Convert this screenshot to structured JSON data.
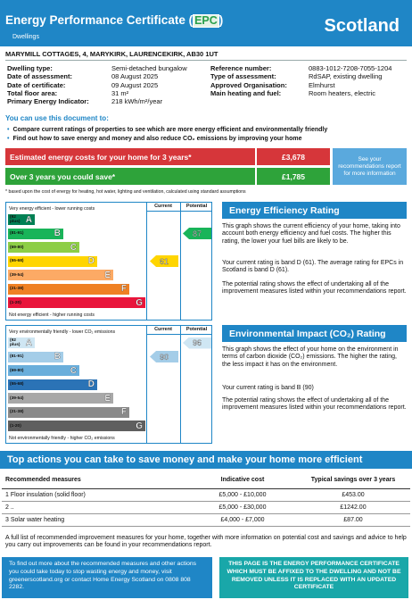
{
  "header": {
    "title_pre": "Energy Performance Certificate (",
    "title_epc": "EPC",
    "title_post": ")",
    "subtitle": "Dwellings",
    "country": "Scotland"
  },
  "address": "MARYMILL COTTAGES, 4, MARYKIRK, LAURENCEKIRK, AB30 1UT",
  "details_left": [
    {
      "label": "Dwelling type:",
      "value": "Semi-detached bungalow"
    },
    {
      "label": "Date of assessment:",
      "value": "08 August 2025"
    },
    {
      "label": "Date of certificate:",
      "value": "09 August 2025"
    },
    {
      "label": "Total floor area:",
      "value": "31 m²"
    },
    {
      "label": "Primary Energy Indicator:",
      "value": "218 kWh/m²/year"
    }
  ],
  "details_right": [
    {
      "label": "Reference number:",
      "value": "0883-1012-7208-7055-1204"
    },
    {
      "label": "Type of assessment:",
      "value": "RdSAP, existing dwelling"
    },
    {
      "label": "Approved Organisation:",
      "value": "Elmhurst"
    },
    {
      "label": "Main heating and fuel:",
      "value": "Room heaters, electric"
    }
  ],
  "use_doc": {
    "heading": "You can use this document to:",
    "bullet1": "Compare current ratings of properties to see which are more energy efficient and environmentally friendly",
    "bullet2": "Find out how to save energy and money and also reduce CO₂ emissions by improving your home"
  },
  "costs": {
    "estimated_label": "Estimated energy costs for your home for 3 years*",
    "estimated_value": "£3,678",
    "save_label": "Over 3 years you could save*",
    "save_value": "£1,785",
    "see_box": "See your recommendations report for more information",
    "footnote": "* based upon the cost of energy for heating, hot water, lighting and ventilation, calculated using standard assumptions"
  },
  "ee_chart": {
    "top_label": "Very energy efficient - lower running costs",
    "bottom_label": "Not energy efficient - higher running costs",
    "col_current": "Current",
    "col_potential": "Potential",
    "bands": [
      {
        "range": "(92 plus)",
        "letter": "A",
        "color": "#008054"
      },
      {
        "range": "(81-91)",
        "letter": "B",
        "color": "#19b459"
      },
      {
        "range": "(69-80)",
        "letter": "C",
        "color": "#8dce46"
      },
      {
        "range": "(55-68)",
        "letter": "D",
        "color": "#ffd500"
      },
      {
        "range": "(39-54)",
        "letter": "E",
        "color": "#fcaa65"
      },
      {
        "range": "(21-38)",
        "letter": "F",
        "color": "#ef8023"
      },
      {
        "range": "(1-20)",
        "letter": "G",
        "color": "#e9153b"
      }
    ],
    "current": 61,
    "current_band": "D",
    "potential": 87,
    "potential_band": "B"
  },
  "ei_chart": {
    "top_label": "Very environmentally friendly - lower CO₂ emissions",
    "bottom_label": "Not environmentally friendly - higher CO₂ emissions",
    "col_current": "Current",
    "col_potential": "Potential",
    "bands": [
      {
        "range": "(92 plus)",
        "letter": "A",
        "color": "#cfe6f3"
      },
      {
        "range": "(81-91)",
        "letter": "B",
        "color": "#a4cde8"
      },
      {
        "range": "(69-80)",
        "letter": "C",
        "color": "#6aaedb"
      },
      {
        "range": "(55-68)",
        "letter": "D",
        "color": "#2b73b6"
      },
      {
        "range": "(39-54)",
        "letter": "E",
        "color": "#a8a8a8"
      },
      {
        "range": "(21-38)",
        "letter": "F",
        "color": "#8a8a8a"
      },
      {
        "range": "(1-20)",
        "letter": "G",
        "color": "#5f5f5f"
      }
    ],
    "current": 90,
    "current_band": "B",
    "potential": 96,
    "potential_band": "A"
  },
  "ee_panel": {
    "heading": "Energy Efficiency Rating",
    "p1": "This graph shows the current efficiency of your home, taking into account both energy efficiency and fuel costs. The higher this rating, the lower your fuel bills are likely to be.",
    "p2": "Your current rating is band D (61). The average rating for EPCs in Scotland is band D (61).",
    "p3": "The potential rating shows the effect of undertaking all of the improvement measures listed within your recommendations report."
  },
  "ei_panel": {
    "heading": "Environmental Impact (CO₂) Rating",
    "p1": "This graph shows the effect of your home on the environment in terms of carbon dioxide (CO₂) emissions. The higher the rating, the less impact it has on the environment.",
    "p2": "Your current rating is band B (90)",
    "p3": "The potential rating shows the effect of undertaking all of the improvement measures listed within your recommendations report."
  },
  "actions": {
    "heading": "Top actions you can take to save money and make your home more efficient",
    "col_measures": "Recommended measures",
    "col_cost": "Indicative cost",
    "col_savings": "Typical savings over 3 years",
    "rows": [
      {
        "measure": "1 Floor insulation (solid floor)",
        "cost": "£5,000 - £10,000",
        "saving": "£453.00"
      },
      {
        "measure": "2 ..",
        "cost": "£5,000 - £30,000",
        "saving": "£1242.00"
      },
      {
        "measure": "3 Solar water heating",
        "cost": "£4,000 - £7,000",
        "saving": "£87.00"
      }
    ],
    "note": "A full list of recommended improvement measures for your home, together with more information on potential cost and savings and advice to help you carry out improvements can be found in your recommendations report."
  },
  "footer": {
    "left": "To find out more about the recommended measures and other actions you could take today to stop wasting energy and money, visit greenerscotland.org or contact Home Energy Scotland on 0808 808 2282.",
    "right": "THIS PAGE IS THE ENERGY PERFORMANCE CERTIFICATE WHICH MUST BE AFFIXED TO THE DWELLING AND NOT BE REMOVED UNLESS IT IS REPLACED WITH AN UPDATED CERTIFICATE"
  },
  "colors": {
    "brand_blue": "#1f86c6",
    "estimated_red": "#d6363a",
    "save_green": "#2ea33a",
    "teal": "#19a7a9"
  }
}
